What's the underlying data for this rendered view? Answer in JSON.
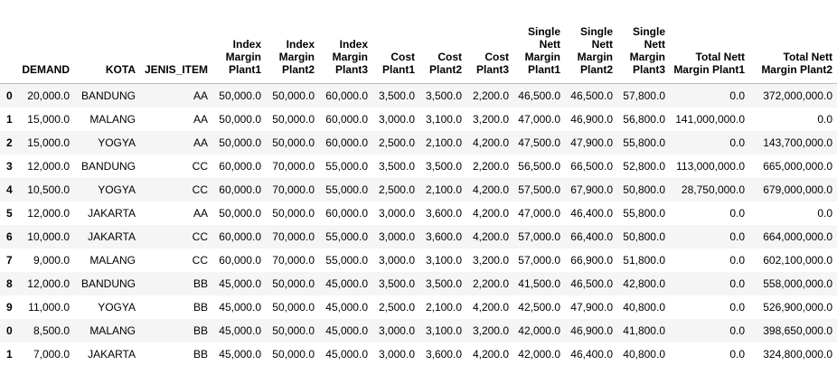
{
  "table": {
    "columns": [
      "",
      "DEMAND",
      "KOTA",
      "JENIS_ITEM",
      "Index Margin Plant1",
      "Index Margin Plant2",
      "Index Margin Plant3",
      "Cost Plant1",
      "Cost Plant2",
      "Cost Plant3",
      "Single Nett Margin Plant1",
      "Single Nett Margin Plant2",
      "Single Nett Margin Plant3",
      "Total Nett Margin Plant1",
      "Total Nett Margin Plant2"
    ],
    "rows": [
      [
        "0",
        "20,000.0",
        "BANDUNG",
        "AA",
        "50,000.0",
        "50,000.0",
        "60,000.0",
        "3,500.0",
        "3,500.0",
        "2,200.0",
        "46,500.0",
        "46,500.0",
        "57,800.0",
        "0.0",
        "372,000,000.0"
      ],
      [
        "1",
        "15,000.0",
        "MALANG",
        "AA",
        "50,000.0",
        "50,000.0",
        "60,000.0",
        "3,000.0",
        "3,100.0",
        "3,200.0",
        "47,000.0",
        "46,900.0",
        "56,800.0",
        "141,000,000.0",
        "0.0"
      ],
      [
        "2",
        "15,000.0",
        "YOGYA",
        "AA",
        "50,000.0",
        "50,000.0",
        "60,000.0",
        "2,500.0",
        "2,100.0",
        "4,200.0",
        "47,500.0",
        "47,900.0",
        "55,800.0",
        "0.0",
        "143,700,000.0"
      ],
      [
        "3",
        "12,000.0",
        "BANDUNG",
        "CC",
        "60,000.0",
        "70,000.0",
        "55,000.0",
        "3,500.0",
        "3,500.0",
        "2,200.0",
        "56,500.0",
        "66,500.0",
        "52,800.0",
        "113,000,000.0",
        "665,000,000.0"
      ],
      [
        "4",
        "10,500.0",
        "YOGYA",
        "CC",
        "60,000.0",
        "70,000.0",
        "55,000.0",
        "2,500.0",
        "2,100.0",
        "4,200.0",
        "57,500.0",
        "67,900.0",
        "50,800.0",
        "28,750,000.0",
        "679,000,000.0"
      ],
      [
        "5",
        "12,000.0",
        "JAKARTA",
        "AA",
        "50,000.0",
        "50,000.0",
        "60,000.0",
        "3,000.0",
        "3,600.0",
        "4,200.0",
        "47,000.0",
        "46,400.0",
        "55,800.0",
        "0.0",
        "0.0"
      ],
      [
        "6",
        "10,000.0",
        "JAKARTA",
        "CC",
        "60,000.0",
        "70,000.0",
        "55,000.0",
        "3,000.0",
        "3,600.0",
        "4,200.0",
        "57,000.0",
        "66,400.0",
        "50,800.0",
        "0.0",
        "664,000,000.0"
      ],
      [
        "7",
        "9,000.0",
        "MALANG",
        "CC",
        "60,000.0",
        "70,000.0",
        "55,000.0",
        "3,000.0",
        "3,100.0",
        "3,200.0",
        "57,000.0",
        "66,900.0",
        "51,800.0",
        "0.0",
        "602,100,000.0"
      ],
      [
        "8",
        "12,000.0",
        "BANDUNG",
        "BB",
        "45,000.0",
        "50,000.0",
        "45,000.0",
        "3,500.0",
        "3,500.0",
        "2,200.0",
        "41,500.0",
        "46,500.0",
        "42,800.0",
        "0.0",
        "558,000,000.0"
      ],
      [
        "9",
        "11,000.0",
        "YOGYA",
        "BB",
        "45,000.0",
        "50,000.0",
        "45,000.0",
        "2,500.0",
        "2,100.0",
        "4,200.0",
        "42,500.0",
        "47,900.0",
        "40,800.0",
        "0.0",
        "526,900,000.0"
      ],
      [
        "0",
        "8,500.0",
        "MALANG",
        "BB",
        "45,000.0",
        "50,000.0",
        "45,000.0",
        "3,000.0",
        "3,100.0",
        "3,200.0",
        "42,000.0",
        "46,900.0",
        "41,800.0",
        "0.0",
        "398,650,000.0"
      ],
      [
        "1",
        "7,000.0",
        "JAKARTA",
        "BB",
        "45,000.0",
        "50,000.0",
        "45,000.0",
        "3,000.0",
        "3,600.0",
        "4,200.0",
        "42,000.0",
        "46,400.0",
        "40,800.0",
        "0.0",
        "324,800,000.0"
      ]
    ]
  },
  "colors": {
    "stripe": "#f5f5f5",
    "header_rule": "#bdbdbd",
    "background": "#ffffff",
    "text": "#000000"
  }
}
